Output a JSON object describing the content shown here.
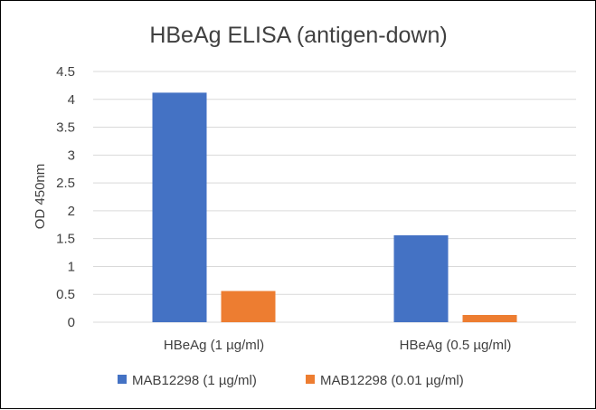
{
  "chart_data": {
    "type": "bar",
    "title": "HBeAg ELISA (antigen-down)",
    "xlabel": "",
    "ylabel": "OD 450nm",
    "categories": [
      "HBeAg (1 µg/ml)",
      "HBeAg (0.5 µg/ml)"
    ],
    "series": [
      {
        "name": "MAB12298 (1 µg/ml)",
        "values": [
          4.12,
          1.56
        ],
        "color": "#4472C4"
      },
      {
        "name": "MAB12298 (0.01 µg/ml)",
        "values": [
          0.56,
          0.13
        ],
        "color": "#ED7D31"
      }
    ],
    "ylim": [
      0,
      4.5
    ],
    "yticks": [
      0,
      0.5,
      1,
      1.5,
      2,
      2.5,
      3,
      3.5,
      4,
      4.5
    ],
    "ytick_labels": [
      "0",
      "0.5",
      "1",
      "1.5",
      "2",
      "2.5",
      "3",
      "3.5",
      "4",
      "4.5"
    ],
    "grid": true,
    "legend_position": "bottom",
    "colors": {
      "gridline": "#D9D9D9",
      "text": "#404040",
      "frame": "#000000"
    }
  }
}
